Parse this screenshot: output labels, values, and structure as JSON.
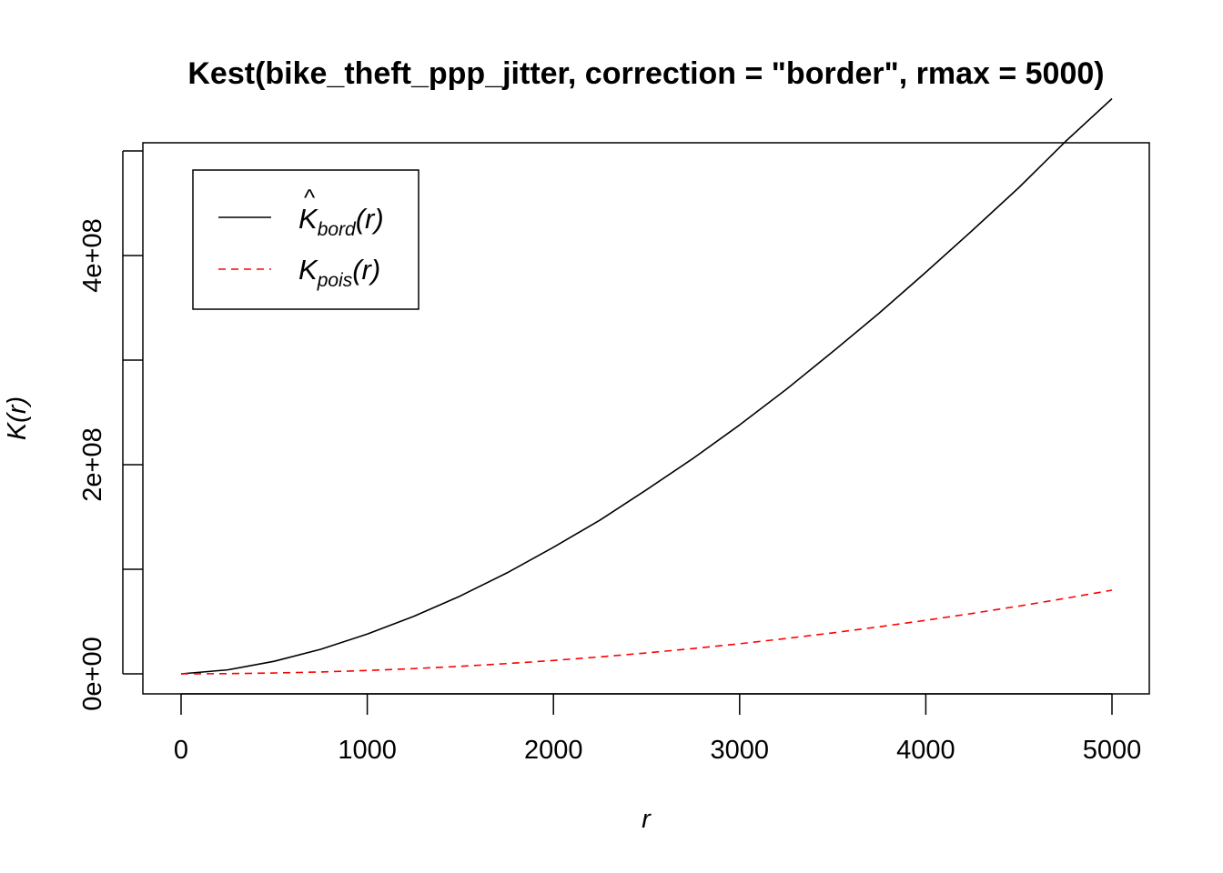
{
  "chart_data": {
    "type": "line",
    "title": "Kest(bike_theft_ppp_jitter, correction = \"border\", rmax = 5000)",
    "xlabel": "r",
    "ylabel": "K(r)",
    "xlim": [
      0,
      5000
    ],
    "ylim": [
      0,
      500000000
    ],
    "x_ticks": [
      0,
      1000,
      2000,
      3000,
      4000,
      5000
    ],
    "x_tick_labels": [
      "0",
      "1000",
      "2000",
      "3000",
      "4000",
      "5000"
    ],
    "y_ticks": [
      0,
      100000000,
      200000000,
      300000000,
      400000000,
      500000000
    ],
    "y_tick_labels": [
      "0e+00",
      "",
      "2e+08",
      "",
      "4e+08",
      ""
    ],
    "grid": false,
    "legend_position": "top-left",
    "legend": [
      {
        "main": "K",
        "hat": "^",
        "sub": "bord",
        "suffix": "(r)",
        "series_index": 0
      },
      {
        "main": "K",
        "hat": "",
        "sub": "pois",
        "suffix": "(r)",
        "series_index": 1
      }
    ],
    "x": [
      0,
      250,
      500,
      750,
      1000,
      1250,
      1500,
      1750,
      2000,
      2250,
      2500,
      2750,
      3000,
      3250,
      3500,
      3750,
      4000,
      4250,
      4500,
      4750,
      5000
    ],
    "series": [
      {
        "name": "K̂bord(r)",
        "color": "#000000",
        "dash": "solid",
        "values": [
          0,
          3800000,
          12000000,
          23500000,
          38000000,
          55000000,
          74500000,
          96500000,
          121000000,
          147000000,
          176000000,
          206000000,
          238000000,
          272000000,
          308000000,
          345000000,
          384000000,
          424000000,
          465000000,
          509000000,
          550000000
        ]
      },
      {
        "name": "Kpois(r)",
        "color": "#ff0000",
        "dash": "dashed",
        "values": [
          0,
          200000,
          800000,
          1800000,
          3200000,
          5000000,
          7200000,
          9800000,
          12800000,
          16200000,
          20000000,
          24200000,
          28800000,
          33800000,
          39200000,
          45000000,
          51200000,
          57800000,
          64800000,
          72200000,
          80000000
        ]
      }
    ]
  }
}
